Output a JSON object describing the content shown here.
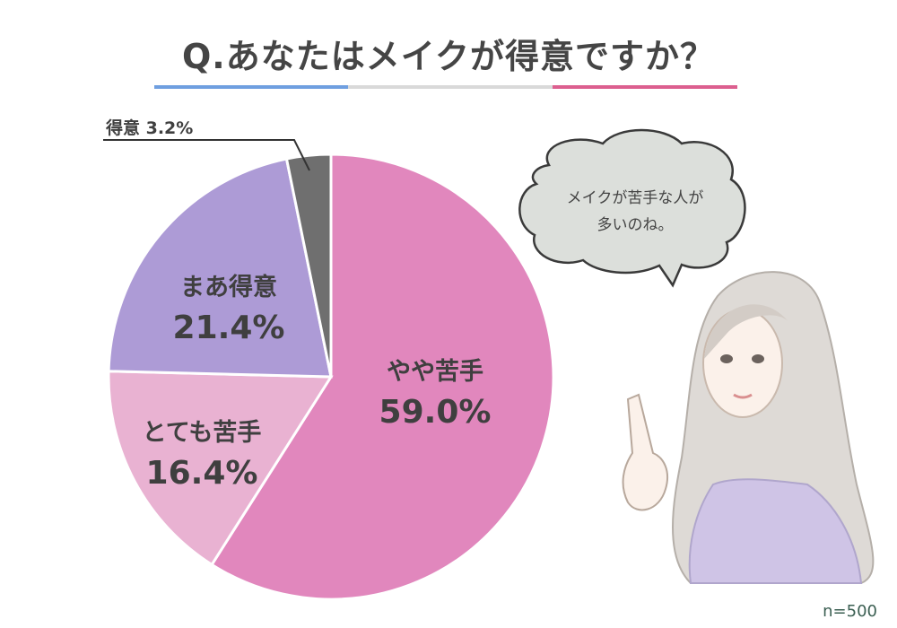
{
  "title": "Q.あなたはメイクが得意ですか？",
  "colors": {
    "rule_left": "#6f9fe0",
    "rule_mid": "#d9d9d9",
    "rule_right": "#dc5f8f"
  },
  "chart_data": {
    "type": "pie",
    "slices": [
      {
        "label": "やや苦手",
        "value": 59.0,
        "display": "59.0%",
        "color": "#e187bd"
      },
      {
        "label": "とても苦手",
        "value": 16.4,
        "display": "16.4%",
        "color": "#e9b2d2"
      },
      {
        "label": "まあ得意",
        "value": 21.4,
        "display": "21.4%",
        "color": "#ad9bd6"
      },
      {
        "label": "得意",
        "value": 3.2,
        "display": "3.2%",
        "color": "#6f6f6f"
      }
    ],
    "start": "12 o'clock",
    "direction": "clockwise"
  },
  "callout": {
    "text": "得意 3.2%"
  },
  "speech_bubble": {
    "line1": "メイクが苦手な人が",
    "line2": "多いのね。"
  },
  "sample_size": "n=500"
}
